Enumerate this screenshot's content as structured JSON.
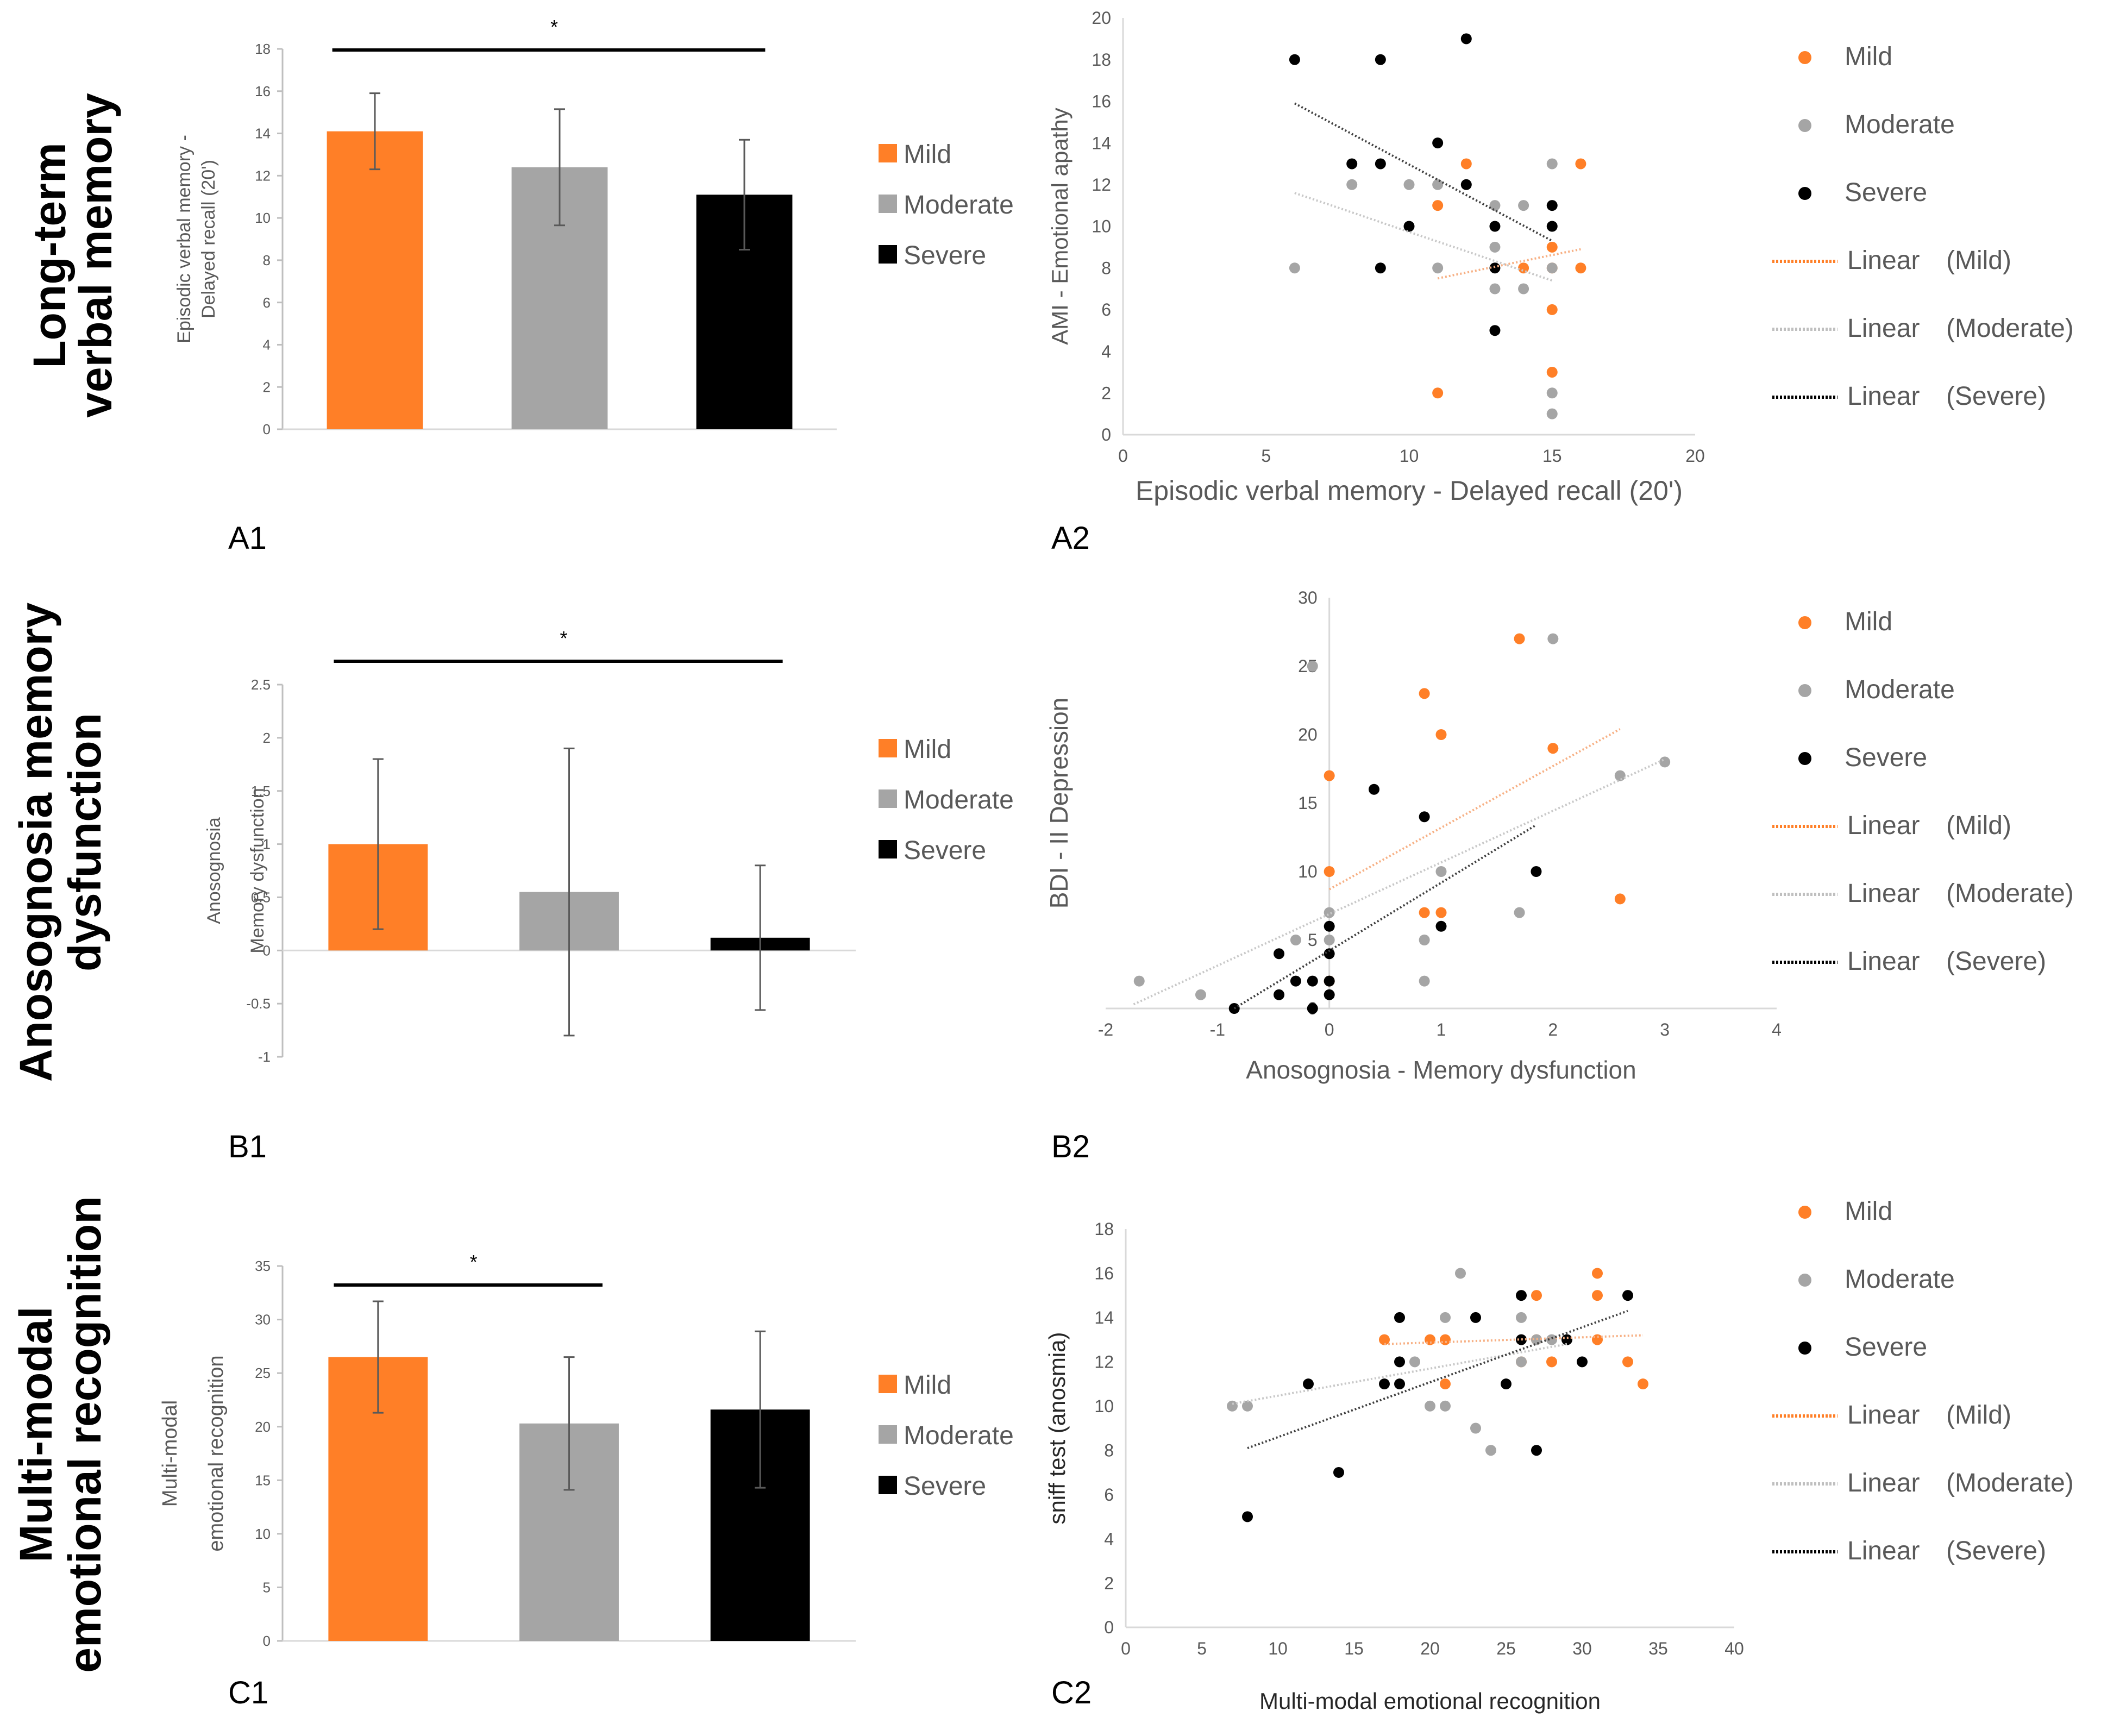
{
  "colors": {
    "mild": "#FF7F27",
    "moderate": "#A5A5A5",
    "severe": "#000000",
    "axis": "#BFBFBF",
    "text": "#595959"
  },
  "rows": [
    {
      "title_lines": [
        "Long-term",
        "verbal memory"
      ],
      "bar_label": "A1",
      "scatter_label": "A2",
      "legend_bar": [
        "Mild",
        "Moderate",
        "Severe"
      ],
      "legend_scatter": {
        "points": [
          "Mild",
          "Moderate",
          "Severe"
        ],
        "lines": [
          {
            "label": "Linear",
            "group": "(Mild)"
          },
          {
            "label": "Linear",
            "group": "(Moderate)"
          },
          {
            "label": "Linear",
            "group": "(Severe)"
          }
        ]
      }
    },
    {
      "title_lines": [
        "Anosognosia memory",
        "dysfunction"
      ],
      "bar_label": "B1",
      "scatter_label": "B2",
      "legend_bar": [
        "Mild",
        "Moderate",
        "Severe"
      ],
      "legend_scatter": {
        "points": [
          "Mild",
          "Moderate",
          "Severe"
        ],
        "lines": [
          {
            "label": "Linear",
            "group": "(Mild)"
          },
          {
            "label": "Linear",
            "group": "(Moderate)"
          },
          {
            "label": "Linear",
            "group": "(Severe)"
          }
        ]
      }
    },
    {
      "title_lines": [
        "Multi-modal",
        "emotional recognition"
      ],
      "bar_label": "C1",
      "scatter_label": "C2",
      "legend_bar": [
        "Mild",
        "Moderate",
        "Severe"
      ],
      "legend_scatter": {
        "points": [
          "Mild",
          "Moderate",
          "Severe"
        ],
        "lines": [
          {
            "label": "Linear",
            "group": "(Mild)"
          },
          {
            "label": "Linear",
            "group": "(Moderate)"
          },
          {
            "label": "Linear",
            "group": "(Severe)"
          }
        ]
      }
    }
  ],
  "chart_data": [
    {
      "id": "A1",
      "type": "bar",
      "categories": [
        "Mild",
        "Moderate",
        "Severe"
      ],
      "values": [
        14.1,
        12.4,
        11.1
      ],
      "errors": [
        1.8,
        2.75,
        2.6
      ],
      "ylabel_lines": [
        "Episodic verbal memory -",
        "Delayed recall (20')"
      ],
      "ylim": [
        0,
        18
      ],
      "yticks": [
        0,
        2,
        4,
        6,
        8,
        10,
        12,
        14,
        16,
        18
      ],
      "significance": {
        "label": "*",
        "from": 0,
        "to": 2
      }
    },
    {
      "id": "A2",
      "type": "scatter",
      "xlabel": "Episodic verbal memory - Delayed recall (20')",
      "ylabel": "AMI - Emotional apathy",
      "xlim": [
        0,
        20
      ],
      "ylim": [
        0,
        20
      ],
      "xticks": [
        0,
        5,
        10,
        15,
        20
      ],
      "yticks": [
        0,
        2,
        4,
        6,
        8,
        10,
        12,
        14,
        16,
        18,
        20
      ],
      "series": [
        {
          "name": "Mild",
          "x": [
            11,
            11,
            12,
            14,
            15,
            15,
            15,
            15,
            16,
            16
          ],
          "y": [
            2,
            11,
            13,
            8,
            9,
            6,
            3,
            8,
            13,
            8
          ]
        },
        {
          "name": "Moderate",
          "x": [
            6,
            8,
            10,
            11,
            11,
            13,
            13,
            13,
            14,
            14,
            15,
            15,
            15,
            15
          ],
          "y": [
            8,
            12,
            12,
            8,
            12,
            11,
            9,
            7,
            11,
            7,
            13,
            8,
            2,
            1
          ]
        },
        {
          "name": "Severe",
          "x": [
            6,
            8,
            9,
            9,
            9,
            10,
            11,
            12,
            12,
            13,
            13,
            13,
            15,
            15
          ],
          "y": [
            18,
            13,
            18,
            13,
            8,
            10,
            14,
            19,
            12,
            10,
            8,
            5,
            11,
            10
          ]
        }
      ],
      "trendlines": [
        {
          "name": "Mild",
          "x": [
            11,
            16
          ],
          "y": [
            7.5,
            8.9
          ]
        },
        {
          "name": "Moderate",
          "x": [
            6,
            15
          ],
          "y": [
            11.6,
            7.4
          ]
        },
        {
          "name": "Severe",
          "x": [
            6,
            15
          ],
          "y": [
            15.9,
            9.3
          ]
        }
      ]
    },
    {
      "id": "B1",
      "type": "bar",
      "categories": [
        "Mild",
        "Moderate",
        "Severe"
      ],
      "values": [
        1.0,
        0.55,
        0.12
      ],
      "errors": [
        0.8,
        1.35,
        0.68
      ],
      "ylabel_lines": [
        "Anosognosia",
        "Memory dysfunction"
      ],
      "ylim": [
        -1,
        2.5
      ],
      "yticks": [
        -1,
        -0.5,
        0,
        0.5,
        1,
        1.5,
        2,
        2.5
      ],
      "significance": {
        "label": "*",
        "from": 0,
        "to": 2
      }
    },
    {
      "id": "B2",
      "type": "scatter",
      "xlabel": "Anosognosia - Memory dysfunction",
      "ylabel": "BDI - II Depression",
      "xlim": [
        -2,
        4
      ],
      "ylim": [
        0,
        30
      ],
      "xticks": [
        -2,
        -1,
        0,
        1,
        2,
        3,
        4
      ],
      "yticks": [
        0,
        5,
        10,
        15,
        20,
        25,
        30
      ],
      "series": [
        {
          "name": "Mild",
          "x": [
            0,
            0,
            0,
            0.85,
            0.85,
            1,
            1,
            1.7,
            2,
            2.6
          ],
          "y": [
            17,
            10,
            2,
            23,
            7,
            20,
            7,
            27,
            19,
            8
          ]
        },
        {
          "name": "Moderate",
          "x": [
            -1.7,
            -1.15,
            -0.15,
            -0.3,
            0,
            0,
            0.85,
            0.85,
            1,
            1.7,
            2,
            2.6,
            3
          ],
          "y": [
            2,
            1,
            25,
            5,
            7,
            5,
            5,
            2,
            10,
            7,
            27,
            17,
            18
          ]
        },
        {
          "name": "Severe",
          "x": [
            -0.85,
            -0.45,
            -0.45,
            -0.3,
            -0.15,
            -0.15,
            0,
            0,
            0,
            0,
            0.4,
            0.85,
            1,
            1.85
          ],
          "y": [
            0,
            4,
            1,
            2,
            2,
            0,
            6,
            4,
            2,
            1,
            16,
            14,
            6,
            10
          ]
        }
      ],
      "trendlines": [
        {
          "name": "Mild",
          "x": [
            0,
            2.6
          ],
          "y": [
            8.7,
            20.4
          ]
        },
        {
          "name": "Moderate",
          "x": [
            -1.75,
            3
          ],
          "y": [
            0.3,
            18.2
          ]
        },
        {
          "name": "Severe",
          "x": [
            -0.85,
            1.85
          ],
          "y": [
            0,
            13.4
          ]
        }
      ]
    },
    {
      "id": "C1",
      "type": "bar",
      "categories": [
        "Mild",
        "Moderate",
        "Severe"
      ],
      "values": [
        26.5,
        20.3,
        21.6
      ],
      "errors": [
        5.2,
        6.2,
        7.3
      ],
      "ylabel_lines": [
        "Multi-modal",
        "emotional recognition"
      ],
      "ylim": [
        0,
        35
      ],
      "yticks": [
        0,
        5,
        10,
        15,
        20,
        25,
        30,
        35
      ],
      "significance": {
        "label": "*",
        "from": 0,
        "to": 1
      }
    },
    {
      "id": "C2",
      "type": "scatter",
      "xlabel": "Multi-modal emotional recognition",
      "ylabel": "sniff test (anosmia)",
      "xlim": [
        0,
        40
      ],
      "ylim": [
        0,
        18
      ],
      "xticks": [
        0,
        5,
        10,
        15,
        20,
        25,
        30,
        35,
        40
      ],
      "yticks": [
        0,
        2,
        4,
        6,
        8,
        10,
        12,
        14,
        16,
        18
      ],
      "series": [
        {
          "name": "Mild",
          "x": [
            17,
            20,
            21,
            21,
            26,
            27,
            27,
            28,
            31,
            31,
            31,
            33,
            34
          ],
          "y": [
            13,
            13,
            13,
            11,
            12,
            13,
            15,
            12,
            16,
            15,
            13,
            12,
            11
          ]
        },
        {
          "name": "Moderate",
          "x": [
            7,
            8,
            19,
            20,
            21,
            21,
            22,
            23,
            24,
            26,
            26,
            27,
            28,
            29
          ],
          "y": [
            10,
            10,
            12,
            10,
            10,
            14,
            16,
            9,
            8,
            14,
            12,
            13,
            13,
            13
          ]
        },
        {
          "name": "Severe",
          "x": [
            8,
            12,
            14,
            17,
            18,
            18,
            18,
            23,
            25,
            26,
            26,
            27,
            29,
            30,
            33
          ],
          "y": [
            5,
            11,
            7,
            11,
            14,
            12,
            11,
            14,
            11,
            15,
            13,
            8,
            13,
            12,
            15
          ]
        }
      ],
      "trendlines": [
        {
          "name": "Mild",
          "x": [
            17,
            34
          ],
          "y": [
            12.8,
            13.2
          ]
        },
        {
          "name": "Moderate",
          "x": [
            7,
            29
          ],
          "y": [
            10.1,
            12.8
          ]
        },
        {
          "name": "Severe",
          "x": [
            8,
            33
          ],
          "y": [
            8.1,
            14.3
          ]
        }
      ]
    }
  ]
}
